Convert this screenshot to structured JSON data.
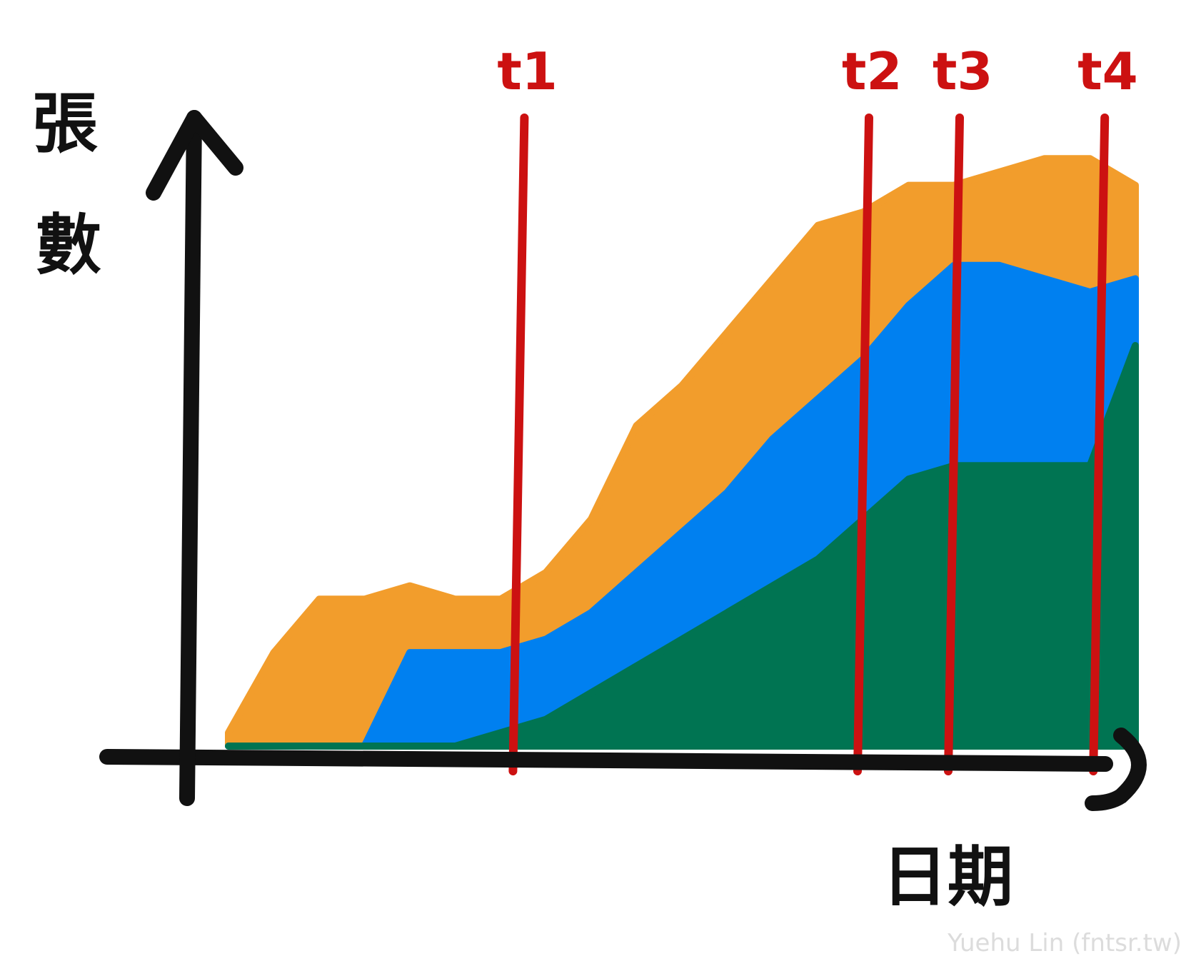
{
  "chart_data": {
    "type": "area",
    "stacked": true,
    "xlabel": "日期",
    "ylabel": "張數",
    "grid": false,
    "legend": "none",
    "axis_color": "#111111",
    "marker_color": "#cc1111",
    "x": [
      0,
      5,
      10,
      15,
      20,
      25,
      30,
      35,
      40,
      45,
      50,
      55,
      60,
      65,
      70,
      75,
      80,
      85,
      90,
      95,
      100
    ],
    "xlim": [
      0,
      100
    ],
    "ylim": [
      0,
      100
    ],
    "series": [
      {
        "color": "#007452",
        "values": [
          0,
          0,
          0,
          0,
          0,
          0,
          2,
          4,
          8,
          12,
          16,
          20,
          24,
          28,
          34,
          40,
          42,
          42,
          42,
          42,
          60
        ]
      },
      {
        "color": "#0080f0",
        "values": [
          0,
          0,
          0,
          0,
          14,
          14,
          12,
          12,
          12,
          14,
          16,
          18,
          22,
          24,
          24,
          26,
          30,
          30,
          28,
          26,
          10
        ]
      },
      {
        "color": "#f29d2c",
        "values": [
          2,
          14,
          22,
          22,
          10,
          8,
          8,
          10,
          14,
          22,
          22,
          24,
          24,
          26,
          22,
          18,
          12,
          14,
          18,
          20,
          14
        ]
      }
    ],
    "markers": [
      {
        "label": "t1",
        "x": 32
      },
      {
        "label": "t2",
        "x": 70
      },
      {
        "label": "t3",
        "x": 80
      },
      {
        "label": "t4",
        "x": 96
      }
    ]
  },
  "watermark": "Yuehu Lin (fntsr.tw)"
}
